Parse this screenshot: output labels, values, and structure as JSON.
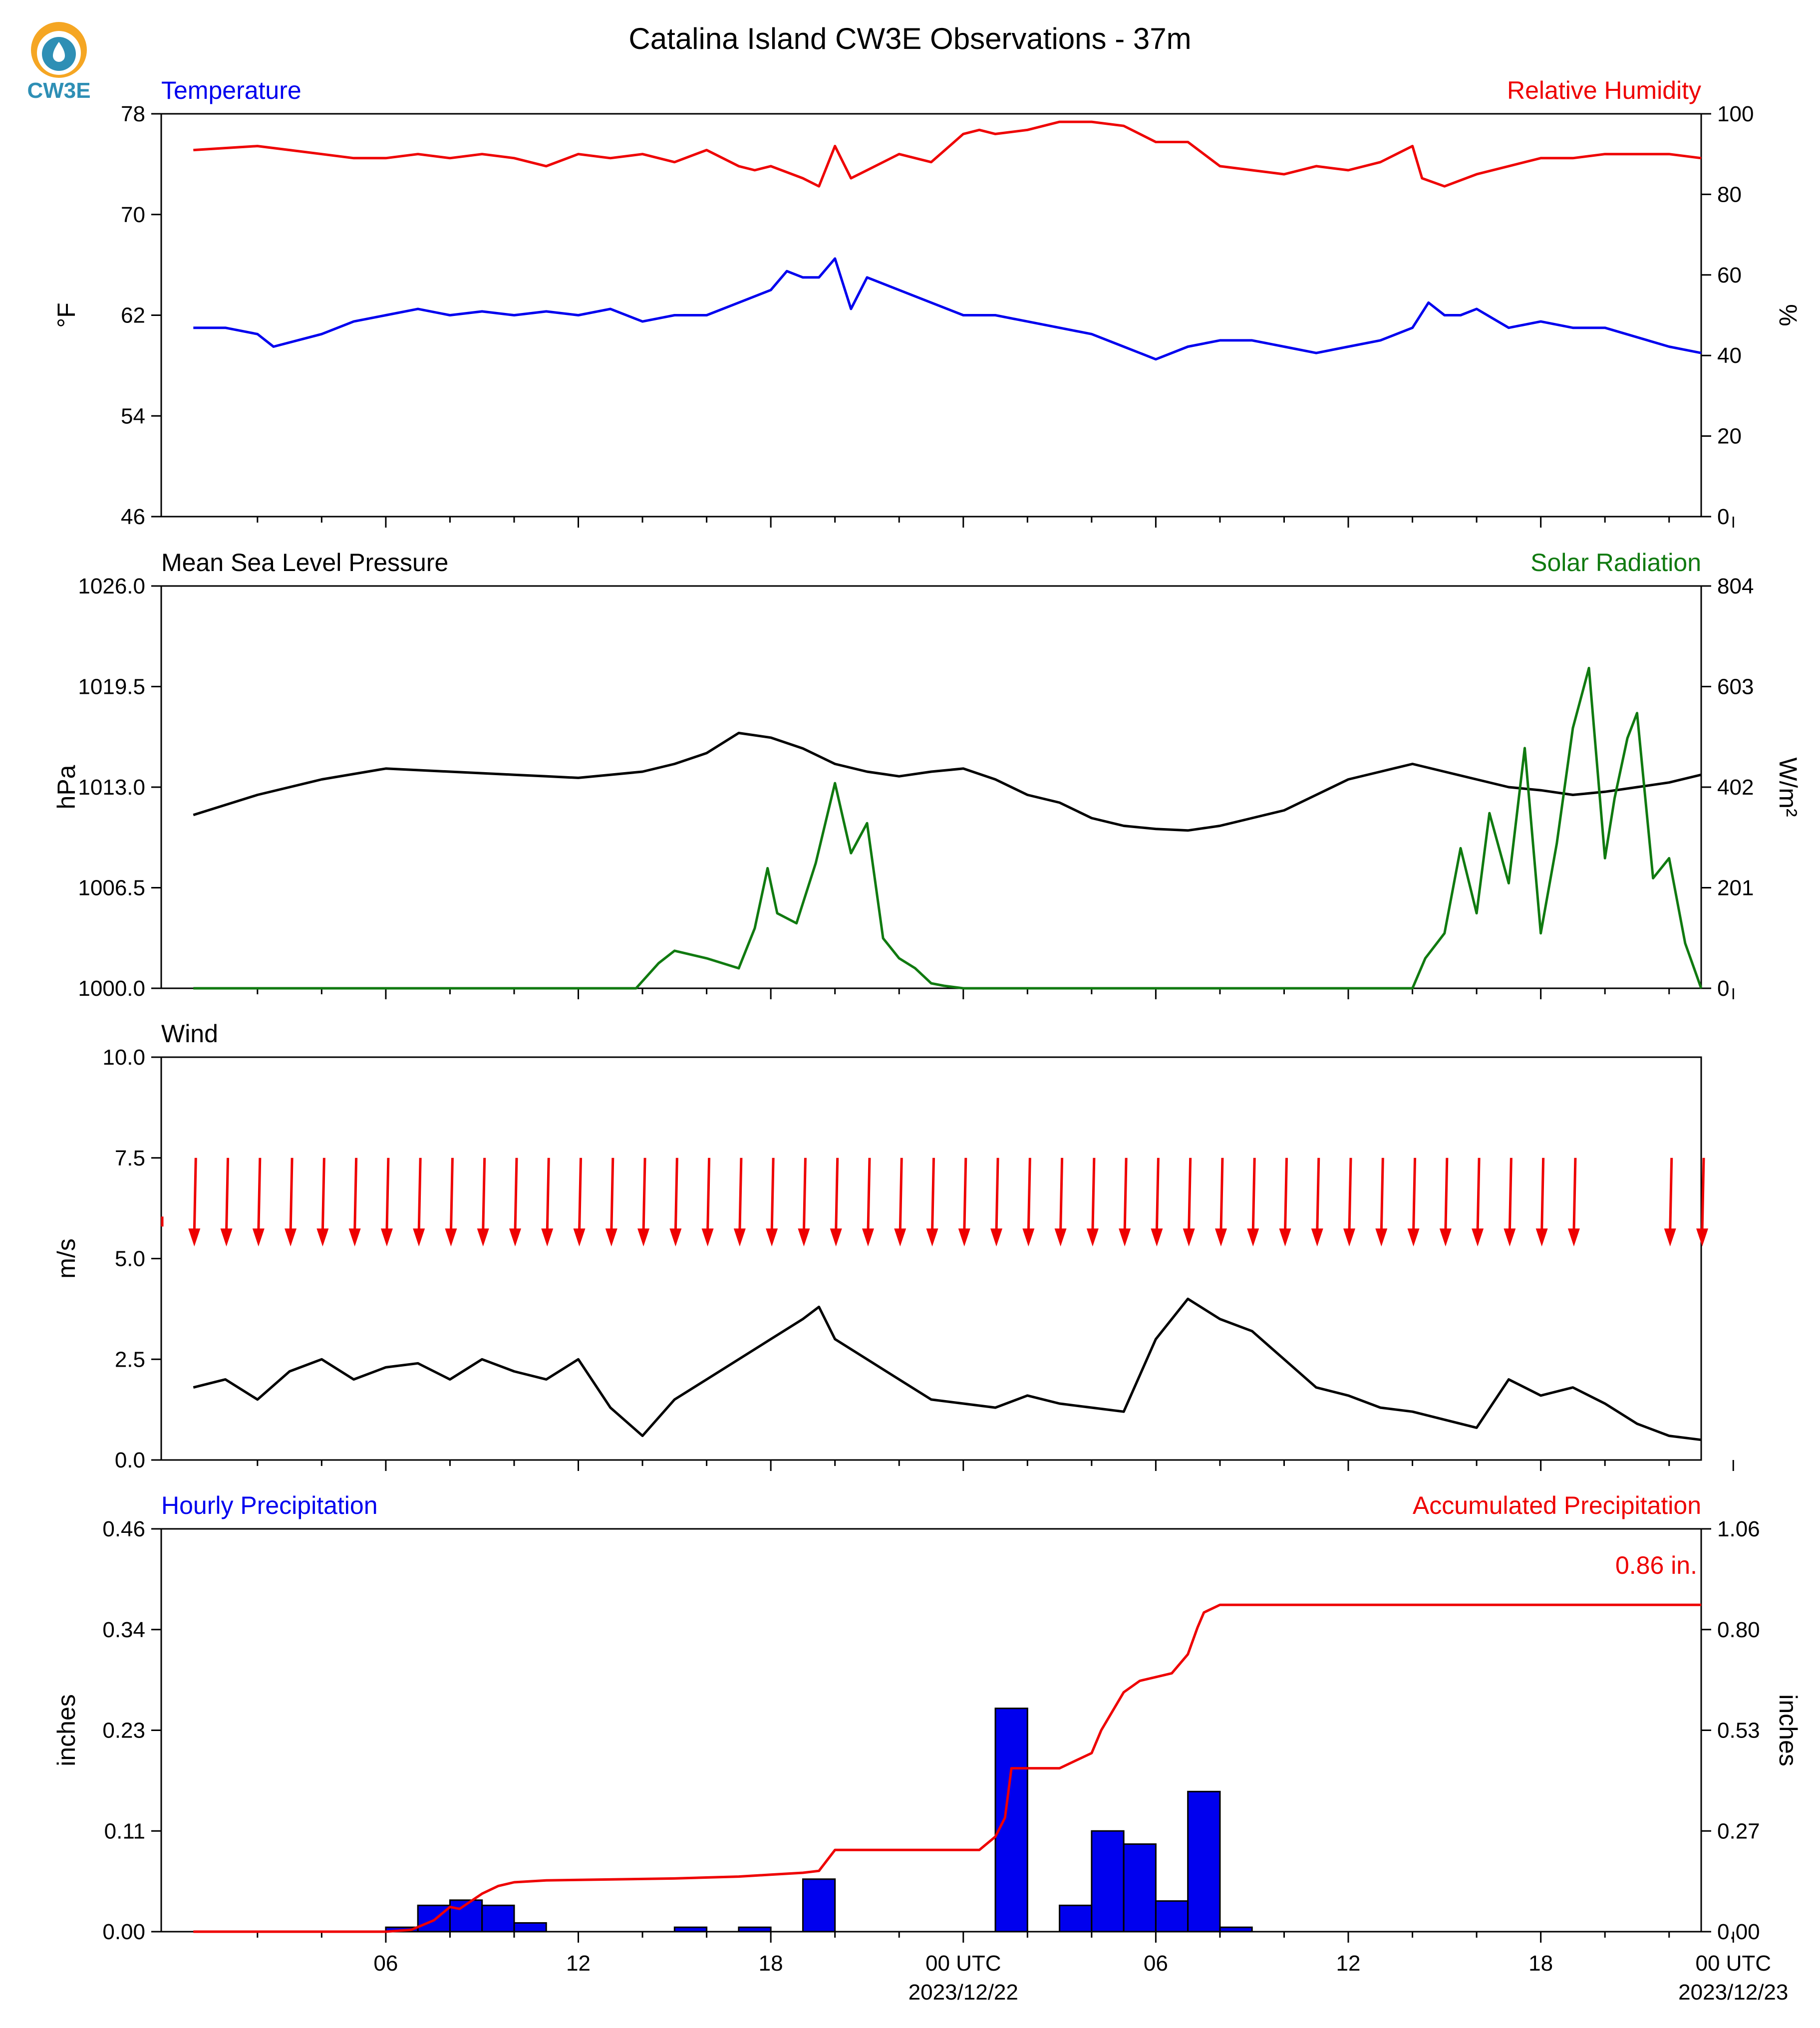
{
  "title": "Catalina Island CW3E Observations - 37m",
  "logo": {
    "text": "CW3E",
    "color": "#2e8fb5",
    "accent": "#f5a623"
  },
  "x_axis": {
    "ticks": [
      "06",
      "12",
      "18",
      "00 UTC",
      "06",
      "12",
      "18",
      "00 UTC"
    ],
    "dates": [
      "2023/12/22",
      "2023/12/23"
    ]
  },
  "colors": {
    "blue": "#0000ee",
    "red": "#ee0000",
    "green": "#107a10",
    "black": "#000000"
  },
  "chart_data": [
    {
      "type": "line",
      "title_left": "Temperature",
      "title_right": "Relative Humidity",
      "ylabel_left": "°F",
      "ylabel_right": "%",
      "yticks_left": [
        "78",
        "70",
        "62",
        "54",
        "46"
      ],
      "yticks_right": [
        "100",
        "80",
        "60",
        "40",
        "20",
        "0"
      ],
      "ylim_left": [
        46,
        78
      ],
      "ylim_right": [
        0,
        100
      ],
      "series": [
        {
          "name": "Temperature",
          "axis": "left",
          "x": [
            0,
            1,
            2,
            2.5,
            4,
            5,
            6,
            7,
            8,
            9,
            10,
            11,
            12,
            13,
            14,
            15,
            16,
            17,
            18,
            18.5,
            19,
            19.5,
            20,
            20.5,
            21,
            22,
            23,
            24,
            25,
            26,
            27,
            28,
            29,
            30,
            31,
            32,
            33,
            34,
            35,
            36,
            37,
            38,
            38.5,
            39,
            39.5,
            40,
            41,
            42,
            43,
            44,
            46,
            47
          ],
          "values": [
            61,
            61,
            60.5,
            59.5,
            60.5,
            61.5,
            62,
            62.5,
            62,
            62.3,
            62,
            62.3,
            62,
            62.5,
            61.5,
            62,
            62,
            63,
            64,
            65.5,
            65,
            65,
            66.5,
            62.5,
            65,
            64,
            63,
            62,
            62,
            61.5,
            61,
            60.5,
            59.5,
            58.5,
            59.5,
            60,
            60,
            59.5,
            59,
            59.5,
            60,
            61,
            63,
            62,
            62,
            62.5,
            61,
            61.5,
            61,
            61,
            59.5,
            59
          ]
        },
        {
          "name": "Relative Humidity",
          "axis": "right",
          "x": [
            0,
            2,
            3,
            4,
            5,
            6,
            7,
            8,
            9,
            10,
            11,
            12,
            13,
            14,
            15,
            16,
            17,
            17.5,
            18,
            19,
            19.5,
            20,
            20.5,
            21,
            22,
            23,
            24,
            24.5,
            25,
            26,
            27,
            28,
            29,
            30,
            31,
            32,
            33,
            34,
            35,
            36,
            37,
            38,
            38.3,
            39,
            40,
            41,
            42,
            43,
            44,
            46,
            47
          ],
          "values": [
            91,
            92,
            91,
            90,
            89,
            89,
            90,
            89,
            90,
            89,
            87,
            90,
            89,
            90,
            88,
            91,
            87,
            86,
            87,
            84,
            82,
            92,
            84,
            86,
            90,
            88,
            95,
            96,
            95,
            96,
            98,
            98,
            97,
            93,
            93,
            87,
            86,
            85,
            87,
            86,
            88,
            92,
            84,
            82,
            85,
            87,
            89,
            89,
            90,
            90,
            89
          ]
        }
      ]
    },
    {
      "type": "line",
      "title_left": "Mean Sea Level Pressure",
      "title_right": "Solar Radiation",
      "ylabel_left": "hPa",
      "ylabel_right": "W/m²",
      "yticks_left": [
        "1026.0",
        "1019.5",
        "1013.0",
        "1006.5",
        "1000.0"
      ],
      "yticks_right": [
        "804",
        "603",
        "402",
        "201",
        "0"
      ],
      "ylim_left": [
        1000,
        1026
      ],
      "ylim_right": [
        0,
        804
      ],
      "series": [
        {
          "name": "Mean Sea Level Pressure",
          "axis": "left",
          "x": [
            0,
            2,
            4,
            6,
            8,
            10,
            11,
            12,
            13,
            14,
            15,
            16,
            17,
            18,
            19,
            20,
            21,
            22,
            23,
            24,
            25,
            26,
            27,
            28,
            29,
            30,
            31,
            32,
            33,
            34,
            35,
            36,
            37,
            38,
            39,
            40,
            41,
            42,
            43,
            44,
            45,
            46,
            47
          ],
          "values": [
            1011.2,
            1012.5,
            1013.5,
            1014.2,
            1014.0,
            1013.8,
            1013.7,
            1013.6,
            1013.8,
            1014.0,
            1014.5,
            1015.2,
            1016.5,
            1016.2,
            1015.5,
            1014.5,
            1014.0,
            1013.7,
            1014.0,
            1014.2,
            1013.5,
            1012.5,
            1012.0,
            1011.0,
            1010.5,
            1010.3,
            1010.2,
            1010.5,
            1011.0,
            1011.5,
            1012.5,
            1013.5,
            1014.0,
            1014.5,
            1014.0,
            1013.5,
            1013.0,
            1012.8,
            1012.5,
            1012.7,
            1013.0,
            1013.3,
            1013.8
          ]
        },
        {
          "name": "Solar Radiation",
          "axis": "right",
          "x": [
            0,
            13.8,
            14.5,
            15,
            16,
            17,
            17.5,
            17.9,
            18.2,
            18.8,
            19.4,
            20,
            20.5,
            21,
            21.5,
            22,
            22.5,
            23,
            23.4,
            24,
            38,
            38.4,
            39,
            39.5,
            40,
            40.4,
            41,
            41.5,
            42,
            42.5,
            43,
            43.5,
            44,
            44.3,
            44.7,
            45,
            45.5,
            46,
            46.5,
            47
          ],
          "values": [
            0,
            0,
            50,
            75,
            60,
            40,
            120,
            240,
            150,
            130,
            250,
            410,
            270,
            330,
            100,
            60,
            40,
            10,
            5,
            0,
            0,
            60,
            110,
            280,
            150,
            350,
            210,
            480,
            110,
            290,
            520,
            640,
            260,
            380,
            500,
            550,
            220,
            260,
            90,
            0
          ]
        }
      ]
    },
    {
      "type": "line",
      "title_left": "Wind",
      "ylabel_left": "m/s",
      "yticks_left": [
        "10.0",
        "7.5",
        "5.0",
        "2.5",
        "0.0"
      ],
      "ylim_left": [
        0,
        10
      ],
      "series": [
        {
          "name": "Wind",
          "axis": "left",
          "x": [
            0,
            1,
            2,
            3,
            4,
            5,
            6,
            7,
            8,
            9,
            10,
            11,
            12,
            13,
            14,
            15,
            16,
            17,
            18,
            19,
            19.5,
            20,
            21,
            22,
            23,
            24,
            25,
            26,
            27,
            28,
            29,
            30,
            31,
            32,
            33,
            34,
            35,
            36,
            37,
            38,
            39,
            40,
            41,
            42,
            43,
            44,
            45,
            46,
            47
          ],
          "values": [
            1.8,
            2.0,
            1.5,
            2.2,
            2.5,
            2.0,
            2.3,
            2.4,
            2.0,
            2.5,
            2.2,
            2.0,
            2.5,
            1.3,
            0.6,
            1.5,
            2.0,
            2.5,
            3.0,
            3.5,
            3.8,
            3.0,
            2.5,
            2.0,
            1.5,
            1.4,
            1.3,
            1.6,
            1.4,
            1.3,
            1.2,
            3.0,
            4.0,
            3.5,
            3.2,
            2.5,
            1.8,
            1.6,
            1.3,
            1.2,
            1.0,
            0.8,
            2.0,
            1.6,
            1.8,
            1.4,
            0.9,
            0.6,
            0.5
          ]
        }
      ],
      "wind_arrows": {
        "speed_ms": 7.5,
        "direction": "from north",
        "gap_hours": [
          44,
          45
        ]
      }
    },
    {
      "type": "bar",
      "title_left": "Hourly Precipitation",
      "title_right": "Accumulated Precipitation",
      "annotation": "0.86 in.",
      "ylabel_left": "inches",
      "ylabel_right": "inches",
      "yticks_left": [
        "0.46",
        "0.34",
        "0.23",
        "0.11",
        "0.00"
      ],
      "yticks_right": [
        "1.06",
        "0.80",
        "0.53",
        "0.27",
        "0.00"
      ],
      "ylim_left": [
        0,
        0.46
      ],
      "ylim_right": [
        0,
        1.06
      ],
      "bars": {
        "hours": [
          6,
          7,
          8,
          9,
          10,
          15,
          17,
          19,
          25,
          27,
          28,
          29,
          30,
          31,
          32
        ],
        "values": [
          0.005,
          0.03,
          0.036,
          0.03,
          0.01,
          0.005,
          0.005,
          0.06,
          0.255,
          0.03,
          0.115,
          0.1,
          0.035,
          0.16,
          0.005
        ]
      },
      "series": [
        {
          "name": "Accumulated Precipitation",
          "axis": "right",
          "x": [
            0,
            6,
            6.8,
            7.5,
            8,
            8.3,
            9,
            9.5,
            10,
            11,
            15,
            17,
            18,
            19,
            19.5,
            20,
            24.5,
            25,
            25.3,
            25.5,
            26,
            27,
            28,
            28.3,
            29,
            29.5,
            30,
            30.5,
            31,
            31.3,
            31.5,
            32,
            47
          ],
          "values": [
            0,
            0,
            0.005,
            0.03,
            0.065,
            0.06,
            0.1,
            0.12,
            0.13,
            0.135,
            0.14,
            0.145,
            0.15,
            0.155,
            0.16,
            0.215,
            0.215,
            0.25,
            0.3,
            0.43,
            0.43,
            0.43,
            0.47,
            0.53,
            0.63,
            0.66,
            0.67,
            0.68,
            0.73,
            0.8,
            0.84,
            0.86,
            0.86
          ]
        }
      ]
    }
  ]
}
